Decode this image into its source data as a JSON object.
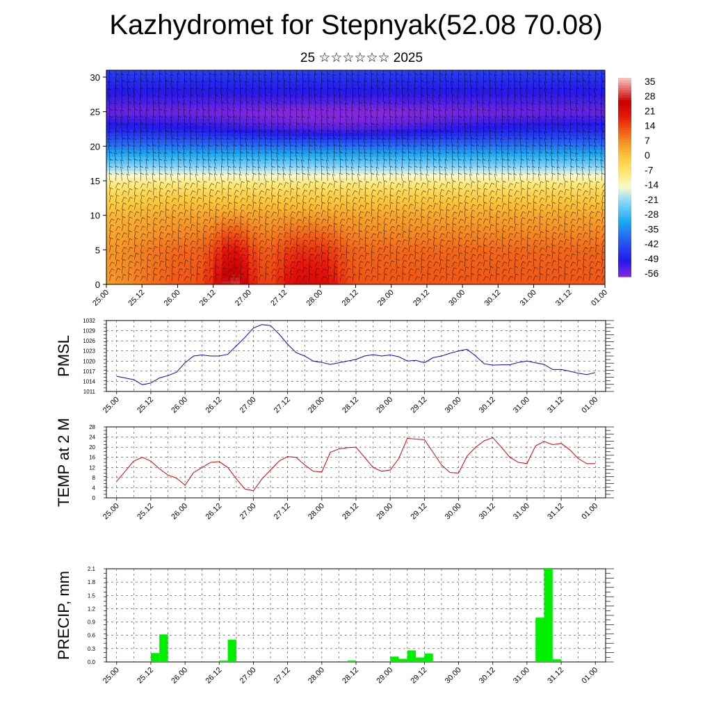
{
  "title": "Kazhydromet for Stepnyak(52.08 70.08)",
  "subtitle": "25 ☆☆☆☆☆☆ 2025",
  "time_labels": [
    "25.00",
    "25.12",
    "26.00",
    "26.12",
    "27.00",
    "27.12",
    "28.00",
    "28.12",
    "29.00",
    "29.12",
    "30.00",
    "30.12",
    "31.00",
    "31.12",
    "01.00"
  ],
  "chart_data": [
    {
      "type": "heatmap",
      "title": "",
      "ylabel": "",
      "ylim": [
        0,
        31
      ],
      "yticks": [
        0,
        5,
        10,
        15,
        20,
        25,
        30
      ],
      "colorbar_labels": [
        35,
        28,
        21,
        14,
        7,
        0,
        -7,
        -14,
        -21,
        -28,
        -35,
        -42,
        -49,
        -56
      ],
      "colorbar_range": [
        -60,
        40
      ],
      "temperature_profile_height": [
        0,
        5,
        10,
        13,
        15,
        17,
        20,
        22,
        25,
        28,
        31
      ],
      "temperature_profile_value": [
        14,
        12,
        5,
        -2,
        -10,
        -22,
        -38,
        -48,
        -58,
        -52,
        -46
      ],
      "surface_hotspots_x": [
        3.6,
        5.3,
        6.1,
        3.5
      ],
      "overlay": "wind barbs"
    },
    {
      "type": "line",
      "ylabel": "PMSL",
      "ylim": [
        1011,
        1032
      ],
      "yticks": [
        1011,
        1014,
        1017,
        1020,
        1023,
        1026,
        1029,
        1032
      ],
      "color": "#0000dd",
      "x": [
        0,
        0.25,
        0.5,
        0.75,
        1,
        1.25,
        1.5,
        1.75,
        2,
        2.25,
        2.5,
        2.75,
        3,
        3.25,
        3.5,
        3.75,
        4,
        4.25,
        4.5,
        4.75,
        5,
        5.25,
        5.5,
        5.75,
        6,
        6.25,
        6.5,
        6.75,
        7,
        7.25,
        7.5,
        7.75,
        8,
        8.25,
        8.5,
        8.75,
        9,
        9.25,
        9.5,
        9.75,
        10,
        10.25,
        10.5,
        10.75,
        11,
        11.25,
        11.5,
        11.75,
        12,
        12.25,
        12.5,
        12.75,
        13,
        13.25,
        13.5,
        13.75,
        14
      ],
      "values": [
        1015.5,
        1015,
        1014.5,
        1013,
        1013.5,
        1015,
        1015.7,
        1016.7,
        1019.5,
        1021.5,
        1021.8,
        1021.5,
        1021.5,
        1022,
        1024.5,
        1027,
        1029.8,
        1030.8,
        1030.5,
        1028,
        1025,
        1022.5,
        1021.5,
        1020,
        1019.6,
        1019,
        1019.5,
        1020,
        1020.5,
        1021.5,
        1021.9,
        1021.5,
        1021.8,
        1021.3,
        1020,
        1020.2,
        1019.5,
        1021,
        1021.5,
        1022.3,
        1023,
        1023.5,
        1021.5,
        1019.2,
        1018.8,
        1018.9,
        1018.9,
        1019.6,
        1020,
        1019.5,
        1019,
        1017.5,
        1017.5,
        1017,
        1016.4,
        1016,
        1016.6
      ]
    },
    {
      "type": "line",
      "ylabel": "TEMP at 2 M",
      "ylim": [
        0,
        28
      ],
      "yticks": [
        0,
        4,
        8,
        12,
        16,
        20,
        24,
        28
      ],
      "color": "#dd0000",
      "x": [
        0,
        0.25,
        0.5,
        0.75,
        1,
        1.25,
        1.5,
        1.75,
        2,
        2.25,
        2.5,
        2.75,
        3,
        3.25,
        3.5,
        3.75,
        4,
        4.25,
        4.5,
        4.75,
        5,
        5.25,
        5.5,
        5.75,
        6,
        6.25,
        6.5,
        6.75,
        7,
        7.25,
        7.5,
        7.75,
        8,
        8.25,
        8.5,
        8.75,
        9,
        9.25,
        9.5,
        9.75,
        10,
        10.25,
        10.5,
        10.75,
        11,
        11.25,
        11.5,
        11.75,
        12,
        12.25,
        12.5,
        12.75,
        13,
        13.25,
        13.5,
        13.75,
        14
      ],
      "values": [
        6.5,
        10.5,
        14.5,
        16,
        14.5,
        11.5,
        9,
        7.8,
        5,
        10,
        12,
        14,
        14.3,
        12,
        7.5,
        3.5,
        2.8,
        7.5,
        11,
        14.5,
        16.3,
        16,
        13,
        10.5,
        10.2,
        18,
        19.3,
        19.8,
        20,
        16,
        12,
        10.5,
        11,
        15.5,
        23.5,
        23.2,
        23,
        18,
        13,
        10,
        9.8,
        16.5,
        20,
        22.5,
        23.8,
        20,
        16,
        14,
        13.5,
        20.5,
        22.3,
        21,
        21.5,
        19,
        15.5,
        13.5,
        13.5
      ]
    },
    {
      "type": "bar",
      "ylabel": "PRECIP, mm",
      "ylim": [
        0,
        2.1
      ],
      "yticks": [
        "0.0",
        "0.3",
        "0.6",
        "0.9",
        "1.2",
        "1.5",
        "1.8",
        "2.1"
      ],
      "color": "#00ee00",
      "x": [
        1.125,
        1.375,
        3.125,
        3.375,
        6.875,
        8.125,
        8.375,
        8.625,
        8.875,
        9.125,
        12.375,
        12.625,
        12.875
      ],
      "values": [
        0.2,
        0.62,
        0.03,
        0.5,
        0.03,
        0.12,
        0.07,
        0.26,
        0.1,
        0.19,
        1.0,
        2.1,
        0.06
      ]
    }
  ]
}
